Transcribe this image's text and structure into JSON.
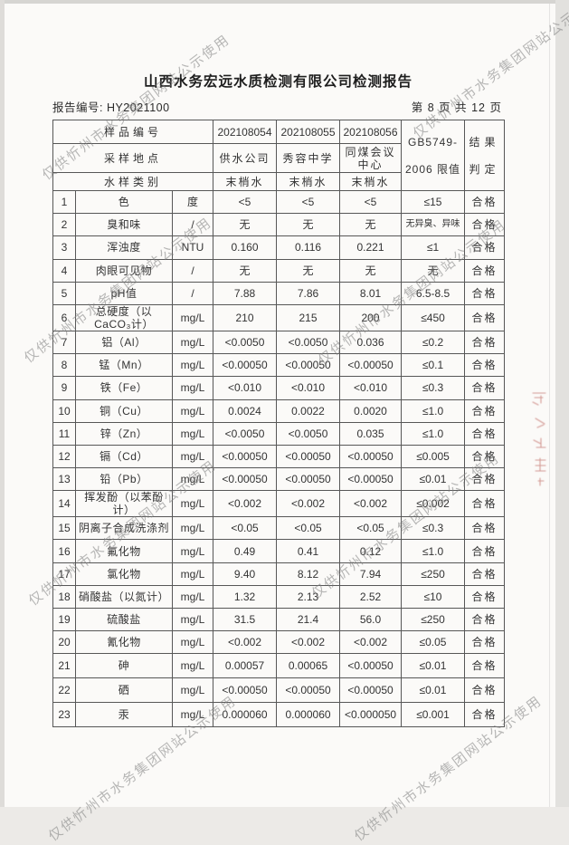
{
  "page": {
    "title": "山西水务宏远水质检测有限公司检测报告",
    "report_no": "报告编号: HY2021100",
    "page_indicator": "第 8 页 共 12 页"
  },
  "watermark": {
    "text": "仅供忻州市水务集团网站公示使用"
  },
  "colors": {
    "watermark_gray": "rgba(125,125,125,0.55)",
    "stamp_red": "#b24a42",
    "table_line": "#575757"
  },
  "icons": {
    "stamp": "red-seal-fragment"
  },
  "table": {
    "header": {
      "sample_no_label": "样品编号",
      "location_label": "采样地点",
      "sample_type_label": "水样类别",
      "sample_nos": [
        "202108054",
        "202108055",
        "202108056"
      ],
      "locations": [
        "供水公司",
        "秀容中学",
        "同煤会议中心"
      ],
      "sample_types": [
        "末梢水",
        "末梢水",
        "末梢水"
      ],
      "limit_header_lines": [
        "GB5749-",
        "2006 限值"
      ],
      "result_header_lines": [
        "结果",
        "判定"
      ]
    },
    "rows": [
      {
        "no": "1",
        "item": "色",
        "unit": "度",
        "v1": "<5",
        "v2": "<5",
        "v3": "<5",
        "limit": "≤15",
        "result": "合格"
      },
      {
        "no": "2",
        "item": "臭和味",
        "unit": "/",
        "v1": "无",
        "v2": "无",
        "v3": "无",
        "limit": "无异臭、异味",
        "result": "合格"
      },
      {
        "no": "3",
        "item": "浑浊度",
        "unit": "NTU",
        "v1": "0.160",
        "v2": "0.116",
        "v3": "0.221",
        "limit": "≤1",
        "result": "合格"
      },
      {
        "no": "4",
        "item": "肉眼可见物",
        "unit": "/",
        "v1": "无",
        "v2": "无",
        "v3": "无",
        "limit": "无",
        "result": "合格"
      },
      {
        "no": "5",
        "item": "pH值",
        "unit": "/",
        "v1": "7.88",
        "v2": "7.86",
        "v3": "8.01",
        "limit": "6.5-8.5",
        "result": "合格"
      },
      {
        "no": "6",
        "item": "总硬度（以CaCO₃计）",
        "unit": "mg/L",
        "v1": "210",
        "v2": "215",
        "v3": "200",
        "limit": "≤450",
        "result": "合格"
      },
      {
        "no": "7",
        "item": "铝（Al）",
        "unit": "mg/L",
        "v1": "<0.0050",
        "v2": "<0.0050",
        "v3": "0.036",
        "limit": "≤0.2",
        "result": "合格"
      },
      {
        "no": "8",
        "item": "锰（Mn）",
        "unit": "mg/L",
        "v1": "<0.00050",
        "v2": "<0.00050",
        "v3": "<0.00050",
        "limit": "≤0.1",
        "result": "合格"
      },
      {
        "no": "9",
        "item": "铁（Fe）",
        "unit": "mg/L",
        "v1": "<0.010",
        "v2": "<0.010",
        "v3": "<0.010",
        "limit": "≤0.3",
        "result": "合格"
      },
      {
        "no": "10",
        "item": "铜（Cu）",
        "unit": "mg/L",
        "v1": "0.0024",
        "v2": "0.0022",
        "v3": "0.0020",
        "limit": "≤1.0",
        "result": "合格"
      },
      {
        "no": "11",
        "item": "锌（Zn）",
        "unit": "mg/L",
        "v1": "<0.0050",
        "v2": "<0.0050",
        "v3": "0.035",
        "limit": "≤1.0",
        "result": "合格"
      },
      {
        "no": "12",
        "item": "镉（Cd）",
        "unit": "mg/L",
        "v1": "<0.00050",
        "v2": "<0.00050",
        "v3": "<0.00050",
        "limit": "≤0.005",
        "result": "合格"
      },
      {
        "no": "13",
        "item": "铅（Pb）",
        "unit": "mg/L",
        "v1": "<0.00050",
        "v2": "<0.00050",
        "v3": "<0.00050",
        "limit": "≤0.01",
        "result": "合格"
      },
      {
        "no": "14",
        "item": "挥发酚（以苯酚计）",
        "unit": "mg/L",
        "v1": "<0.002",
        "v2": "<0.002",
        "v3": "<0.002",
        "limit": "≤0.002",
        "result": "合格"
      },
      {
        "no": "15",
        "item": "阴离子合成洗涤剂",
        "unit": "mg/L",
        "v1": "<0.05",
        "v2": "<0.05",
        "v3": "<0.05",
        "limit": "≤0.3",
        "result": "合格"
      },
      {
        "no": "16",
        "item": "氟化物",
        "unit": "mg/L",
        "v1": "0.49",
        "v2": "0.41",
        "v3": "0.12",
        "limit": "≤1.0",
        "result": "合格"
      },
      {
        "no": "17",
        "item": "氯化物",
        "unit": "mg/L",
        "v1": "9.40",
        "v2": "8.12",
        "v3": "7.94",
        "limit": "≤250",
        "result": "合格"
      },
      {
        "no": "18",
        "item": "硝酸盐（以氮计）",
        "unit": "mg/L",
        "v1": "1.32",
        "v2": "2.13",
        "v3": "2.52",
        "limit": "≤10",
        "result": "合格"
      },
      {
        "no": "19",
        "item": "硫酸盐",
        "unit": "mg/L",
        "v1": "31.5",
        "v2": "21.4",
        "v3": "56.0",
        "limit": "≤250",
        "result": "合格"
      },
      {
        "no": "20",
        "item": "氰化物",
        "unit": "mg/L",
        "v1": "<0.002",
        "v2": "<0.002",
        "v3": "<0.002",
        "limit": "≤0.05",
        "result": "合格"
      },
      {
        "no": "21",
        "item": "砷",
        "unit": "mg/L",
        "v1": "0.00057",
        "v2": "0.00065",
        "v3": "<0.00050",
        "limit": "≤0.01",
        "result": "合格"
      },
      {
        "no": "22",
        "item": "硒",
        "unit": "mg/L",
        "v1": "<0.00050",
        "v2": "<0.00050",
        "v3": "<0.00050",
        "limit": "≤0.01",
        "result": "合格"
      },
      {
        "no": "23",
        "item": "汞",
        "unit": "mg/L",
        "v1": "0.000060",
        "v2": "0.000060",
        "v3": "<0.000050",
        "limit": "≤0.001",
        "result": "合格"
      }
    ]
  }
}
